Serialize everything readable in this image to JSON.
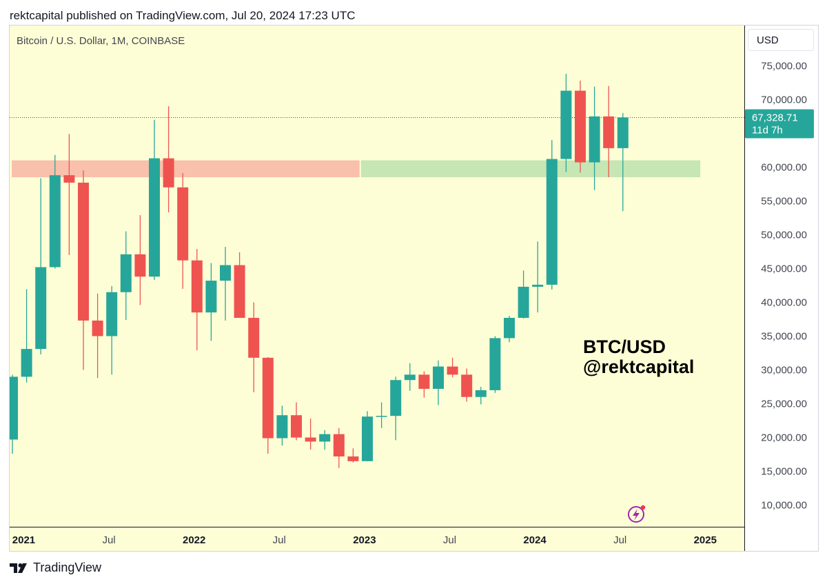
{
  "header": {
    "publish_line": "rektcapital published on TradingView.com, Jul 20, 2024 17:23 UTC"
  },
  "footer": {
    "logo_text": "TradingView"
  },
  "watermark": {
    "line1": "BTC/USD",
    "line2": "@rektcapital"
  },
  "colors": {
    "up": "#26a69a",
    "down": "#ef5350",
    "resistance_zone": "#f9c0ab",
    "support_zone": "#c6e6b3",
    "background": "#fefed6"
  },
  "chart_data": {
    "type": "candlestick",
    "title": "Bitcoin / U.S. Dollar, 1M, COINBASE",
    "unit": "USD",
    "ylim": [
      7000,
      80000
    ],
    "y_ticks": [
      10000,
      15000,
      20000,
      25000,
      30000,
      35000,
      40000,
      45000,
      50000,
      55000,
      60000,
      65000,
      70000,
      75000
    ],
    "y_tick_labels": [
      "10,000.00",
      "15,000.00",
      "20,000.00",
      "25,000.00",
      "30,000.00",
      "35,000.00",
      "40,000.00",
      "45,000.00",
      "50,000.00",
      "55,000.00",
      "60,000.00",
      "65,000.00",
      "70,000.00",
      "75,000.00"
    ],
    "x_tick_labels": [
      {
        "label": "2021",
        "index": 1
      },
      {
        "label": "Jul",
        "index": 7
      },
      {
        "label": "2022",
        "index": 13
      },
      {
        "label": "Jul",
        "index": 19
      },
      {
        "label": "2023",
        "index": 25
      },
      {
        "label": "Jul",
        "index": 31
      },
      {
        "label": "2024",
        "index": 37
      },
      {
        "label": "Jul",
        "index": 43
      },
      {
        "label": "2025",
        "index": 49
      }
    ],
    "last_price": {
      "value": 67328.71,
      "label": "67,328.71",
      "countdown": "11d 7h"
    },
    "zones": [
      {
        "name": "resistance",
        "from": 58500,
        "to": 61000,
        "start_index": 0,
        "end_index": 24.6
      },
      {
        "name": "support",
        "from": 58500,
        "to": 61000,
        "start_index": 24.6,
        "end_index": 48.6
      }
    ],
    "candles": [
      {
        "date": "2020-12",
        "open": 19700,
        "high": 29300,
        "low": 17600,
        "close": 28990
      },
      {
        "date": "2021-01",
        "open": 28990,
        "high": 41950,
        "low": 28130,
        "close": 33100
      },
      {
        "date": "2021-02",
        "open": 33100,
        "high": 58350,
        "low": 32300,
        "close": 45200
      },
      {
        "date": "2021-03",
        "open": 45200,
        "high": 61800,
        "low": 45000,
        "close": 58800
      },
      {
        "date": "2021-04",
        "open": 58800,
        "high": 64900,
        "low": 47000,
        "close": 57700
      },
      {
        "date": "2021-05",
        "open": 57700,
        "high": 59500,
        "low": 30000,
        "close": 37300
      },
      {
        "date": "2021-06",
        "open": 37300,
        "high": 41300,
        "low": 28800,
        "close": 35000
      },
      {
        "date": "2021-07",
        "open": 35000,
        "high": 42400,
        "low": 29300,
        "close": 41500
      },
      {
        "date": "2021-08",
        "open": 41500,
        "high": 50500,
        "low": 37400,
        "close": 47100
      },
      {
        "date": "2021-09",
        "open": 47100,
        "high": 52900,
        "low": 39600,
        "close": 43800
      },
      {
        "date": "2021-10",
        "open": 43800,
        "high": 67000,
        "low": 43300,
        "close": 61300
      },
      {
        "date": "2021-11",
        "open": 61300,
        "high": 69000,
        "low": 53300,
        "close": 57000
      },
      {
        "date": "2021-12",
        "open": 57000,
        "high": 59100,
        "low": 42000,
        "close": 46200
      },
      {
        "date": "2022-01",
        "open": 46200,
        "high": 47900,
        "low": 32900,
        "close": 38500
      },
      {
        "date": "2022-02",
        "open": 38500,
        "high": 45800,
        "low": 34300,
        "close": 43200
      },
      {
        "date": "2022-03",
        "open": 43200,
        "high": 48200,
        "low": 37300,
        "close": 45500
      },
      {
        "date": "2022-04",
        "open": 45500,
        "high": 47400,
        "low": 37700,
        "close": 37700
      },
      {
        "date": "2022-05",
        "open": 37700,
        "high": 40000,
        "low": 26700,
        "close": 31800
      },
      {
        "date": "2022-06",
        "open": 31800,
        "high": 31900,
        "low": 17600,
        "close": 19900
      },
      {
        "date": "2022-07",
        "open": 19900,
        "high": 24700,
        "low": 18800,
        "close": 23300
      },
      {
        "date": "2022-08",
        "open": 23300,
        "high": 25200,
        "low": 19600,
        "close": 20000
      },
      {
        "date": "2022-09",
        "open": 20000,
        "high": 22800,
        "low": 18200,
        "close": 19400
      },
      {
        "date": "2022-10",
        "open": 19400,
        "high": 21100,
        "low": 18200,
        "close": 20500
      },
      {
        "date": "2022-11",
        "open": 20500,
        "high": 21400,
        "low": 15500,
        "close": 17200
      },
      {
        "date": "2022-12",
        "open": 17200,
        "high": 18400,
        "low": 16300,
        "close": 16500
      },
      {
        "date": "2023-01",
        "open": 16500,
        "high": 23900,
        "low": 16500,
        "close": 23100
      },
      {
        "date": "2023-02",
        "open": 23100,
        "high": 25200,
        "low": 21400,
        "close": 23200
      },
      {
        "date": "2023-03",
        "open": 23200,
        "high": 29000,
        "low": 19600,
        "close": 28500
      },
      {
        "date": "2023-04",
        "open": 28500,
        "high": 31000,
        "low": 26900,
        "close": 29300
      },
      {
        "date": "2023-05",
        "open": 29300,
        "high": 29800,
        "low": 25900,
        "close": 27200
      },
      {
        "date": "2023-06",
        "open": 27200,
        "high": 31400,
        "low": 24800,
        "close": 30500
      },
      {
        "date": "2023-07",
        "open": 30500,
        "high": 31800,
        "low": 28900,
        "close": 29300
      },
      {
        "date": "2023-08",
        "open": 29300,
        "high": 30200,
        "low": 25300,
        "close": 26000
      },
      {
        "date": "2023-09",
        "open": 26000,
        "high": 27500,
        "low": 24900,
        "close": 27000
      },
      {
        "date": "2023-10",
        "open": 27000,
        "high": 35000,
        "low": 26600,
        "close": 34700
      },
      {
        "date": "2023-11",
        "open": 34700,
        "high": 38000,
        "low": 34100,
        "close": 37700
      },
      {
        "date": "2023-12",
        "open": 37700,
        "high": 44700,
        "low": 37600,
        "close": 42300
      },
      {
        "date": "2024-01",
        "open": 42300,
        "high": 49000,
        "low": 38500,
        "close": 42600
      },
      {
        "date": "2024-02",
        "open": 42600,
        "high": 64000,
        "low": 41900,
        "close": 61200
      },
      {
        "date": "2024-03",
        "open": 61200,
        "high": 73800,
        "low": 59300,
        "close": 71300
      },
      {
        "date": "2024-04",
        "open": 71300,
        "high": 72800,
        "low": 59200,
        "close": 60700
      },
      {
        "date": "2024-05",
        "open": 60700,
        "high": 71900,
        "low": 56600,
        "close": 67500
      },
      {
        "date": "2024-06",
        "open": 67500,
        "high": 72000,
        "low": 58500,
        "close": 62800
      },
      {
        "date": "2024-07",
        "open": 62800,
        "high": 68000,
        "low": 53500,
        "close": 67329
      }
    ]
  }
}
